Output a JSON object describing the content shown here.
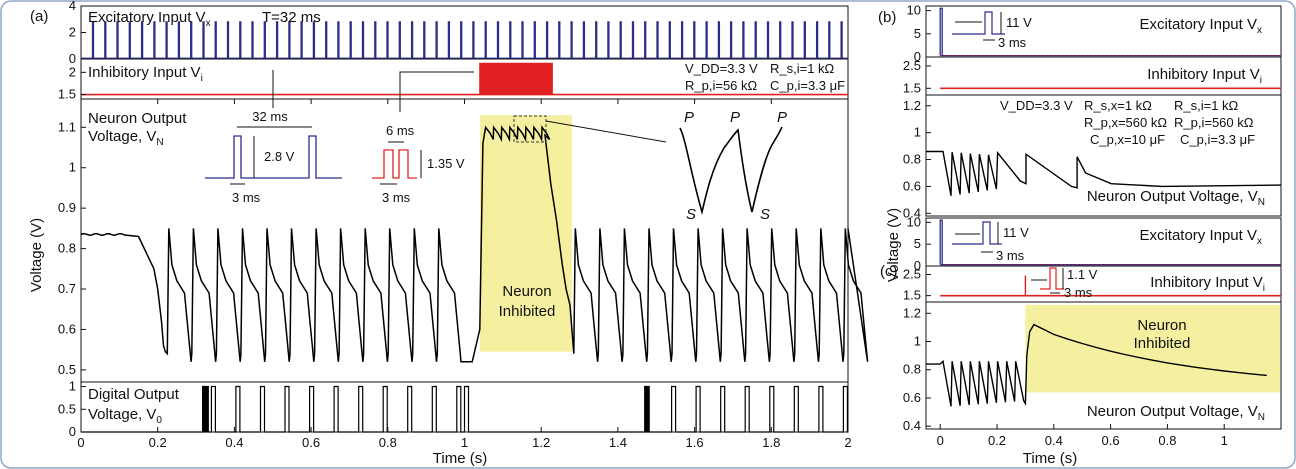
{
  "chart_data": [
    {
      "panel": "(a)",
      "type": "line",
      "xlabel": "Time (s)",
      "ylabel": "Voltage (V)",
      "xlim": [
        0,
        2.0
      ],
      "xticks": [
        "0",
        "0.2",
        "0.4",
        "0.6",
        "0.8",
        "1",
        "1.2",
        "1.4",
        "1.6",
        "1.8",
        "2"
      ],
      "subplots": {
        "excitatory": {
          "label": "Excitatory Input V",
          "label_sub": "x",
          "period_label": "T=32 ms",
          "ylim": [
            0,
            4
          ],
          "yticks": [
            "0",
            "2",
            "4"
          ],
          "color": "#2c2c8c",
          "pulse_period_ms": 32,
          "pulse_width_ms": 3,
          "pulse_amplitude_v": 2.8
        },
        "inhibitory": {
          "label": "Inhibitory Input V",
          "label_sub": "i",
          "ylim": [
            1.4,
            2.3
          ],
          "yticks": [
            "1.5",
            "2"
          ],
          "color": "#e02020",
          "baseline_v": 1.5,
          "burst_start_s": 1.04,
          "burst_end_s": 1.23,
          "pulse_period_ms": 6,
          "pulse_amplitude_v": 1.35,
          "params": [
            "V_DD=3.3 V",
            "R_s,i=1 kΩ",
            "R_p,i=56 kΩ",
            "C_p,i=3.3 μF"
          ]
        },
        "neuron": {
          "label_line1": "Neuron Output",
          "label_line2": "Voltage, V",
          "label_sub": "N",
          "ylim": [
            0.47,
            1.17
          ],
          "yticks": [
            "0.5",
            "0.6",
            "0.7",
            "0.8",
            "0.9",
            "1",
            "1.1"
          ],
          "color": "#000000",
          "rest_v": 0.835,
          "spike_peak_v": 0.85,
          "spike_trough_v": 0.52,
          "first_spike_s": 0.215,
          "spike_period_s": 0.064,
          "inhibited_start_s": 1.04,
          "inhibited_end_s": 1.28,
          "inhibited_level_v": 1.09,
          "inhibited_text": [
            "Neuron",
            "Inhibited"
          ],
          "highlight_color": "#f5f0a0",
          "inset_excitatory": {
            "period": "32 ms",
            "width": "3 ms",
            "amplitude": "2.8 V"
          },
          "inset_inhibitory": {
            "period": "6 ms",
            "width": "3 ms",
            "amplitude": "1.35 V"
          },
          "zoom_labels": [
            "P",
            "P",
            "P",
            "S",
            "S"
          ]
        },
        "digital": {
          "label_line1": "Digital Output",
          "label_line2": "Voltage, V",
          "label_sub": "0",
          "ylim": [
            0,
            1.1
          ],
          "yticks": [
            "0",
            "0.5",
            "1"
          ],
          "color": "#000000"
        }
      }
    },
    {
      "panel": "(b)",
      "type": "line",
      "xlim": [
        -0.05,
        1.2
      ],
      "subplots": {
        "excitatory": {
          "label": "Excitatory Input V",
          "label_sub": "x",
          "ylim": [
            0,
            11
          ],
          "yticks": [
            "0",
            "5",
            "10"
          ],
          "color": "#2c2c8c",
          "pulse_amplitude": "11 V",
          "pulse_width": "3 ms"
        },
        "inhibitory": {
          "label": "Inhibitory Input V",
          "label_sub": "i",
          "ylim": [
            1.2,
            2.9
          ],
          "yticks": [
            "1.5",
            "2.5"
          ],
          "color": "#e02020",
          "baseline_v": 1.5
        },
        "neuron": {
          "label": "Neuron Output Voltage, V",
          "label_sub": "N",
          "ylim": [
            0.38,
            1.28
          ],
          "yticks": [
            "0.4",
            "0.6",
            "0.8",
            "1",
            "1.2"
          ],
          "params": [
            "V_DD=3.3 V",
            "R_s,x=1 kΩ",
            "R_s,i=1 kΩ",
            "R_p,x=560 kΩ",
            "R_p,i=560 kΩ",
            "C_p,x=10 μF",
            "C_p,i=3.3 μF"
          ]
        }
      }
    },
    {
      "panel": "(c)",
      "type": "line",
      "xlabel": "Time (s)",
      "xlim": [
        -0.05,
        1.2
      ],
      "xticks": [
        "0",
        "0.2",
        "0.4",
        "0.6",
        "0.8",
        "1"
      ],
      "subplots": {
        "excitatory": {
          "label": "Excitatory Input V",
          "label_sub": "x",
          "ylim": [
            0,
            11
          ],
          "yticks": [
            "0",
            "5",
            "10"
          ],
          "color": "#2c2c8c",
          "pulse_amplitude": "11 V",
          "pulse_width": "3 ms"
        },
        "inhibitory": {
          "label": "Inhibitory Input V",
          "label_sub": "i",
          "ylim": [
            1.2,
            2.9
          ],
          "yticks": [
            "1.5",
            "2.5"
          ],
          "color": "#e02020",
          "baseline_v": 1.5,
          "pulse_amplitude": "1.1 V",
          "pulse_width": "3 ms",
          "step_time_s": 0.3
        },
        "neuron": {
          "label": "Neuron Output Voltage, V",
          "label_sub": "N",
          "ylim": [
            0.38,
            1.28
          ],
          "yticks": [
            "0.4",
            "0.6",
            "0.8",
            "1",
            "1.2"
          ],
          "inhibited_text": [
            "Neuron",
            "Inhibited"
          ],
          "inhibited_start_s": 0.3,
          "inhibited_peak_v": 1.12,
          "highlight_color": "#f5f0a0"
        }
      }
    }
  ]
}
